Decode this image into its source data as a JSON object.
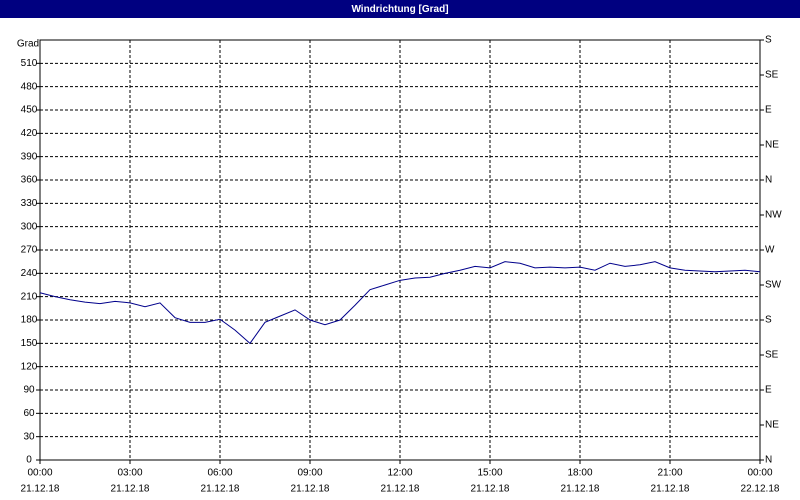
{
  "chart_data": {
    "type": "line",
    "title": "Windrichtung [Grad]",
    "y_label": "Grad",
    "x": [
      0,
      0.5,
      1,
      1.5,
      2,
      2.5,
      3,
      3.5,
      4,
      4.5,
      5,
      5.5,
      6,
      6.5,
      7,
      7.5,
      8,
      8.5,
      9,
      9.5,
      10,
      10.5,
      11,
      11.5,
      12,
      12.5,
      13,
      13.5,
      14,
      14.5,
      15,
      15.5,
      16,
      16.5,
      17,
      17.5,
      18,
      18.5,
      19,
      19.5,
      20,
      20.5,
      21,
      21.5,
      22,
      22.5,
      23,
      23.5,
      24
    ],
    "series": [
      {
        "name": "Windrichtung",
        "color": "#00008b",
        "values": [
          215,
          210,
          206,
          203,
          201,
          204,
          202,
          197,
          202,
          183,
          177,
          177,
          181,
          167,
          150,
          177,
          185,
          193,
          180,
          174,
          180,
          199,
          219,
          225,
          231,
          234,
          235,
          240,
          244,
          249,
          247,
          255,
          253,
          247,
          248,
          247,
          248,
          244,
          253,
          249,
          251,
          255,
          247,
          244,
          243,
          242,
          243,
          244,
          242
        ]
      }
    ],
    "xlim": [
      0,
      24
    ],
    "xticks": [
      {
        "value": 0,
        "label": "00:00",
        "date": "21.12.18"
      },
      {
        "value": 3,
        "label": "03:00",
        "date": "21.12.18"
      },
      {
        "value": 6,
        "label": "06:00",
        "date": "21.12.18"
      },
      {
        "value": 9,
        "label": "09:00",
        "date": "21.12.18"
      },
      {
        "value": 12,
        "label": "12:00",
        "date": "21.12.18"
      },
      {
        "value": 15,
        "label": "15:00",
        "date": "21.12.18"
      },
      {
        "value": 18,
        "label": "18:00",
        "date": "21.12.18"
      },
      {
        "value": 21,
        "label": "21:00",
        "date": "21.12.18"
      },
      {
        "value": 24,
        "label": "00:00",
        "date": "22.12.18"
      }
    ],
    "ylim": [
      0,
      540
    ],
    "yticks": [
      0,
      30,
      60,
      90,
      120,
      150,
      180,
      210,
      240,
      270,
      300,
      330,
      360,
      390,
      420,
      450,
      480,
      510
    ],
    "y2lim": [
      0,
      540
    ],
    "y2ticks": [
      {
        "value": 0,
        "label": "N"
      },
      {
        "value": 45,
        "label": "NE"
      },
      {
        "value": 90,
        "label": "E"
      },
      {
        "value": 135,
        "label": "SE"
      },
      {
        "value": 180,
        "label": "S"
      },
      {
        "value": 225,
        "label": "SW"
      },
      {
        "value": 270,
        "label": "W"
      },
      {
        "value": 315,
        "label": "NW"
      },
      {
        "value": 360,
        "label": "N"
      },
      {
        "value": 405,
        "label": "NE"
      },
      {
        "value": 450,
        "label": "E"
      },
      {
        "value": 495,
        "label": "SE"
      },
      {
        "value": 540,
        "label": "S"
      }
    ],
    "grid": true
  }
}
